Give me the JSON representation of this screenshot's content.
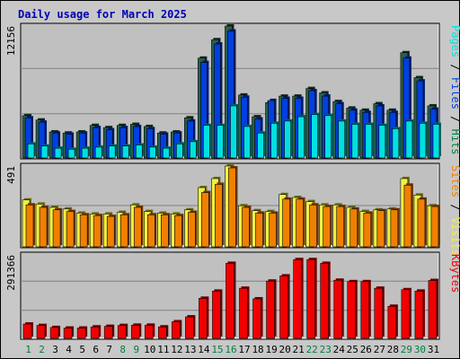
{
  "title": "Daily usage for March 2025",
  "colors": {
    "hits": "#00c0f0",
    "files": "#0040e0",
    "pages": "#00e0e0",
    "visits": "#f0f040",
    "sites": "#f08000",
    "kbytes": "#f00000",
    "weekend_day": "#008040",
    "weekday": "#000000",
    "panel": "#c0c0c0",
    "frame": "#c8c8c8"
  },
  "chart_data": [
    {
      "type": "bar",
      "panel": "hits-files-pages",
      "ytick": "12156",
      "ymax": 12156,
      "label_parts": [
        {
          "text": "Pages",
          "color": "#00e0e0"
        },
        {
          "text": " / ",
          "color": "#000000"
        },
        {
          "text": "Files",
          "color": "#0040e0"
        },
        {
          "text": " / ",
          "color": "#000000"
        },
        {
          "text": "Hits",
          "color": "#008040"
        }
      ],
      "categories": [
        "1",
        "2",
        "3",
        "4",
        "5",
        "6",
        "7",
        "8",
        "9",
        "10",
        "11",
        "12",
        "13",
        "14",
        "15",
        "16",
        "17",
        "18",
        "19",
        "20",
        "21",
        "22",
        "23",
        "24",
        "25",
        "26",
        "27",
        "28",
        "29",
        "30",
        "31"
      ],
      "series": [
        {
          "name": "Hits",
          "values": [
            3900,
            3500,
            2400,
            2300,
            2400,
            3000,
            2800,
            3000,
            3100,
            2900,
            2300,
            2400,
            3700,
            9200,
            10900,
            12156,
            5800,
            3800,
            5100,
            5700,
            5700,
            6400,
            6000,
            5200,
            4600,
            4400,
            5000,
            4400,
            9700,
            7400,
            4800
          ]
        },
        {
          "name": "Files",
          "values": [
            3700,
            3300,
            2300,
            2200,
            2300,
            2800,
            2600,
            2800,
            2900,
            2700,
            2200,
            2300,
            3400,
            8800,
            10500,
            11700,
            5600,
            3600,
            5300,
            5500,
            5500,
            6200,
            5700,
            5000,
            4400,
            4200,
            4800,
            4200,
            9200,
            7100,
            4500
          ]
        },
        {
          "name": "Pages",
          "values": [
            1300,
            1100,
            900,
            800,
            900,
            1000,
            1100,
            1100,
            1200,
            1000,
            900,
            1300,
            1500,
            3000,
            3000,
            4800,
            2900,
            2300,
            3200,
            3400,
            3800,
            4000,
            3900,
            3400,
            3100,
            3100,
            3000,
            2700,
            3400,
            3200,
            3100
          ]
        }
      ]
    },
    {
      "type": "bar",
      "panel": "visits-sites",
      "ytick": "491",
      "ymax": 491,
      "label_parts": [
        {
          "text": "Sites",
          "color": "#f08000"
        },
        {
          "text": " / ",
          "color": "#000000"
        },
        {
          "text": "Visits",
          "color": "#f0f040"
        }
      ],
      "categories": [
        "1",
        "2",
        "3",
        "4",
        "5",
        "6",
        "7",
        "8",
        "9",
        "10",
        "11",
        "12",
        "13",
        "14",
        "15",
        "16",
        "17",
        "18",
        "19",
        "20",
        "21",
        "22",
        "23",
        "24",
        "25",
        "26",
        "27",
        "28",
        "29",
        "30",
        "31"
      ],
      "series": [
        {
          "name": "Visits",
          "values": [
            285,
            260,
            240,
            230,
            205,
            200,
            200,
            210,
            255,
            215,
            205,
            200,
            225,
            360,
            415,
            491,
            250,
            220,
            215,
            318,
            300,
            275,
            255,
            255,
            240,
            215,
            225,
            230,
            415,
            315,
            250
          ]
        },
        {
          "name": "Sites",
          "values": [
            255,
            240,
            225,
            215,
            195,
            190,
            185,
            195,
            240,
            195,
            195,
            190,
            210,
            330,
            380,
            480,
            240,
            205,
            205,
            290,
            290,
            255,
            245,
            245,
            230,
            205,
            220,
            225,
            375,
            290,
            245
          ]
        }
      ]
    },
    {
      "type": "bar",
      "panel": "kbytes",
      "ytick": "291366",
      "ymax": 291366,
      "label_parts": [
        {
          "text": "KBytes",
          "color": "#f00000"
        }
      ],
      "categories": [
        "1",
        "2",
        "3",
        "4",
        "5",
        "6",
        "7",
        "8",
        "9",
        "10",
        "11",
        "12",
        "13",
        "14",
        "15",
        "16",
        "17",
        "18",
        "19",
        "20",
        "21",
        "22",
        "23",
        "24",
        "25",
        "26",
        "27",
        "28",
        "29",
        "30",
        "31"
      ],
      "series": [
        {
          "name": "KBytes",
          "values": [
            50000,
            45000,
            38000,
            36000,
            36000,
            40000,
            42000,
            45000,
            46000,
            46000,
            40000,
            58000,
            75000,
            140000,
            165000,
            262000,
            175000,
            138000,
            200000,
            218000,
            275000,
            275000,
            262000,
            203000,
            198000,
            198000,
            175000,
            112000,
            170000,
            165000,
            202000
          ]
        }
      ]
    }
  ],
  "x_labels": [
    "1",
    "2",
    "3",
    "4",
    "5",
    "6",
    "7",
    "8",
    "9",
    "10",
    "11",
    "12",
    "13",
    "14",
    "15",
    "16",
    "17",
    "18",
    "19",
    "20",
    "21",
    "22",
    "23",
    "24",
    "25",
    "26",
    "27",
    "28",
    "29",
    "30",
    "31"
  ],
  "weekend_days": [
    "1",
    "2",
    "8",
    "9",
    "15",
    "16",
    "22",
    "23",
    "29",
    "30"
  ]
}
